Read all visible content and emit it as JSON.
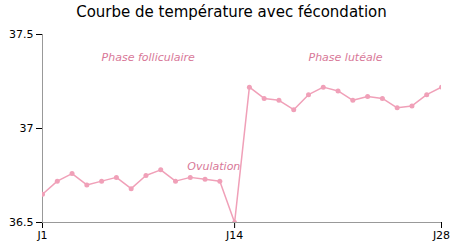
{
  "chart_data": {
    "type": "line",
    "title": "Courbe de température avec fécondation",
    "x": [
      1,
      2,
      3,
      4,
      5,
      6,
      7,
      8,
      9,
      10,
      11,
      12,
      13,
      14,
      15,
      16,
      17,
      18,
      19,
      20,
      21,
      22,
      23,
      24,
      25,
      26,
      27,
      28
    ],
    "values": [
      36.65,
      36.72,
      36.76,
      36.7,
      36.72,
      36.74,
      36.68,
      36.75,
      36.78,
      36.72,
      36.74,
      36.73,
      36.72,
      36.5,
      37.22,
      37.16,
      37.15,
      37.1,
      37.18,
      37.22,
      37.2,
      37.15,
      37.17,
      37.16,
      37.11,
      37.12,
      37.18,
      37.22
    ],
    "color": "#f0a0b8",
    "marker": "circle",
    "xlim": [
      1,
      28
    ],
    "xticks": [
      {
        "value": 1,
        "label": "J1"
      },
      {
        "value": 14,
        "label": "J14"
      },
      {
        "value": 28,
        "label": "J28"
      }
    ],
    "ylim": [
      36.5,
      37.5
    ],
    "yticks": [
      36.5,
      37,
      37.5
    ],
    "grid": false,
    "annotations": [
      {
        "text": "Phase folliculaire",
        "x": 5.0,
        "y": 37.38,
        "color": "#d87898"
      },
      {
        "text": "Phase lutéale",
        "x": 19.0,
        "y": 37.38,
        "color": "#d87898"
      },
      {
        "text": "Ovulation",
        "x": 10.8,
        "y": 36.8,
        "color": "#d87898"
      }
    ]
  }
}
